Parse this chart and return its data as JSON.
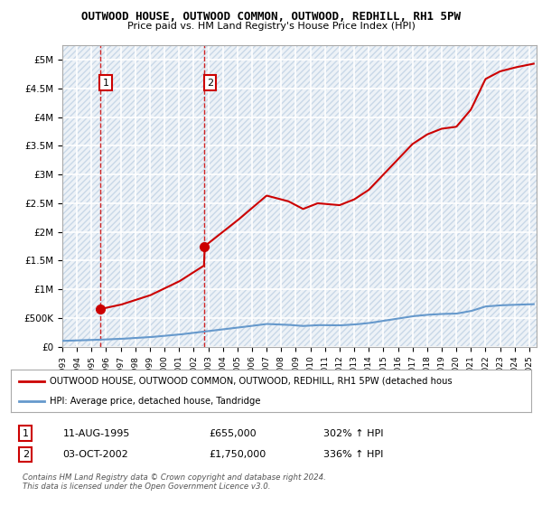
{
  "title": "OUTWOOD HOUSE, OUTWOOD COMMON, OUTWOOD, REDHILL, RH1 5PW",
  "subtitle": "Price paid vs. HM Land Registry's House Price Index (HPI)",
  "bg_color": "#ffffff",
  "plot_bg_color": "#edf2f7",
  "hatch_color": "#c8d8e8",
  "grid_color": "#ffffff",
  "sale1_date": 1995.61,
  "sale1_price": 655000,
  "sale1_label": "1",
  "sale2_date": 2002.75,
  "sale2_price": 1750000,
  "sale2_label": "2",
  "hpi_line_color": "#6699cc",
  "price_line_color": "#cc0000",
  "marker_color": "#cc0000",
  "dashed_color": "#cc0000",
  "ylabel_ticks": [
    "£0",
    "£500K",
    "£1M",
    "£1.5M",
    "£2M",
    "£2.5M",
    "£3M",
    "£3.5M",
    "£4M",
    "£4.5M",
    "£5M"
  ],
  "ytick_values": [
    0,
    500000,
    1000000,
    1500000,
    2000000,
    2500000,
    3000000,
    3500000,
    4000000,
    4500000,
    5000000
  ],
  "ylim": [
    0,
    5250000
  ],
  "xlim_start": 1993.0,
  "xlim_end": 2025.5,
  "legend_line1": "OUTWOOD HOUSE, OUTWOOD COMMON, OUTWOOD, REDHILL, RH1 5PW (detached hous",
  "legend_line2": "HPI: Average price, detached house, Tandridge",
  "note1_label": "1",
  "note1_date": "11-AUG-1995",
  "note1_price": "£655,000",
  "note1_hpi": "302% ↑ HPI",
  "note2_label": "2",
  "note2_date": "03-OCT-2002",
  "note2_price": "£1,750,000",
  "note2_hpi": "336% ↑ HPI",
  "copyright": "Contains HM Land Registry data © Crown copyright and database right 2024.\nThis data is licensed under the Open Government Licence v3.0."
}
